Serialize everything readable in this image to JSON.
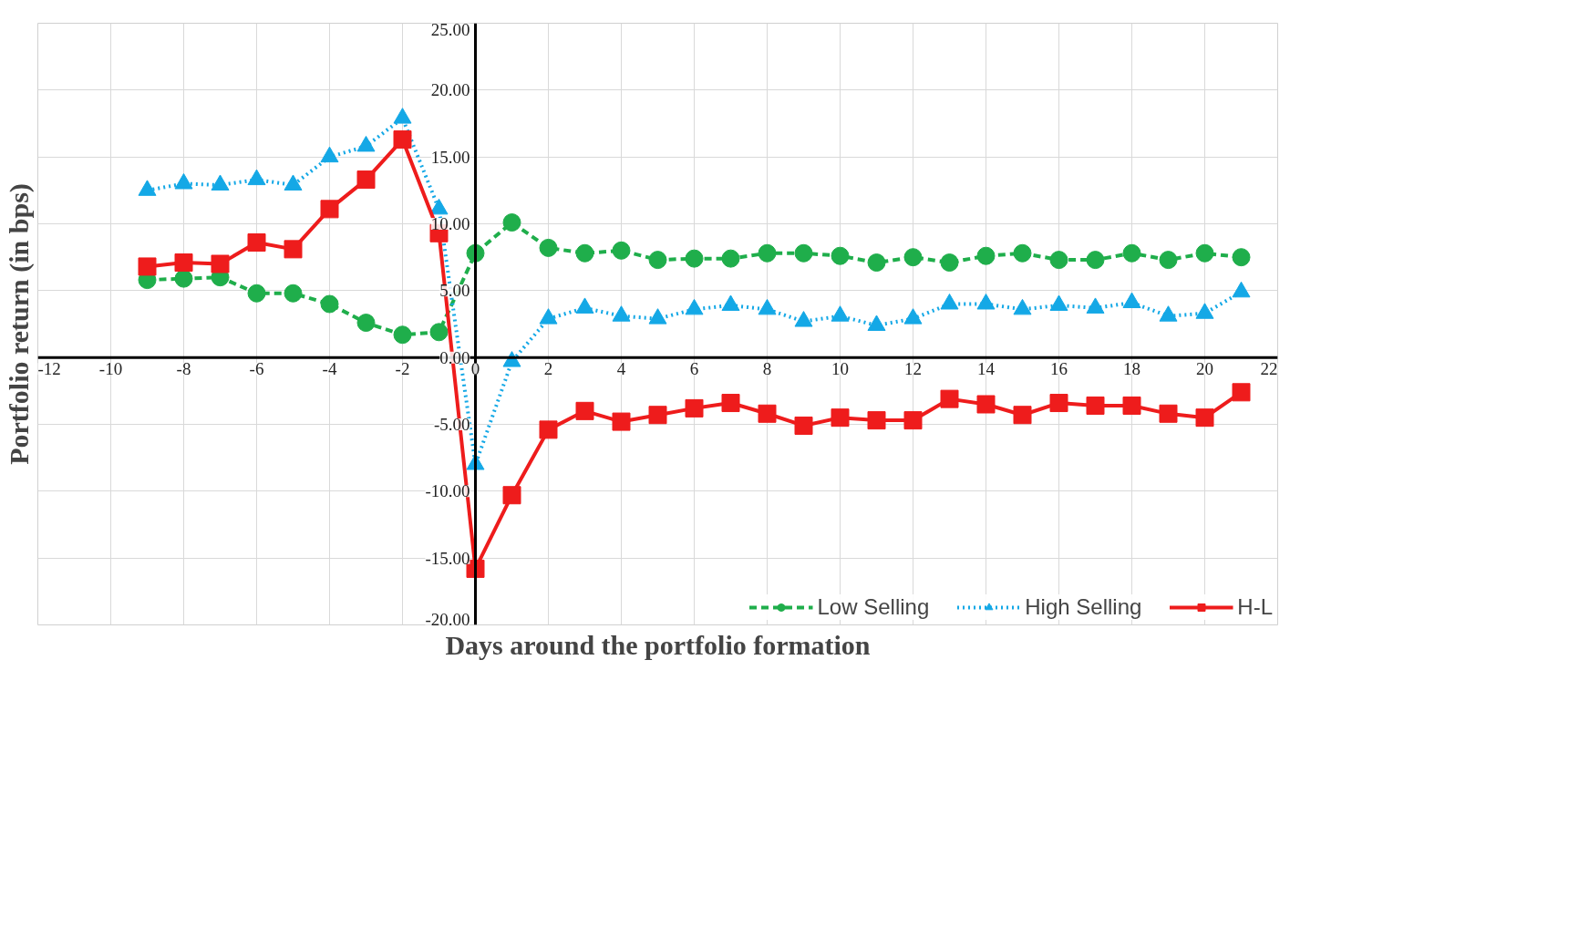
{
  "chart_data": {
    "type": "line",
    "xlabel": "Days around the portfolio formation",
    "ylabel": "Portfolio return (in bps)",
    "x": [
      -9,
      -8,
      -7,
      -6,
      -5,
      -4,
      -3,
      -2,
      -1,
      0,
      1,
      2,
      3,
      4,
      5,
      6,
      7,
      8,
      9,
      10,
      11,
      12,
      13,
      14,
      15,
      16,
      17,
      18,
      19,
      20,
      21
    ],
    "series": [
      {
        "name": "Low Selling",
        "color": "#1fae4b",
        "marker": "circle",
        "line_style": "dashed",
        "values": [
          5.8,
          5.9,
          6.0,
          4.8,
          4.8,
          4.0,
          2.6,
          1.7,
          1.9,
          7.8,
          10.1,
          8.2,
          7.8,
          8.0,
          7.3,
          7.4,
          7.4,
          7.8,
          7.8,
          7.6,
          7.1,
          7.5,
          7.1,
          7.6,
          7.8,
          7.3,
          7.3,
          7.8,
          7.3,
          7.8,
          7.5
        ]
      },
      {
        "name": "High Selling",
        "color": "#14a8e6",
        "marker": "triangle",
        "line_style": "dotted",
        "values": [
          12.5,
          13.0,
          12.9,
          13.3,
          12.9,
          15.0,
          15.8,
          17.9,
          11.1,
          -8.0,
          -0.3,
          2.9,
          3.7,
          3.1,
          2.9,
          3.6,
          3.9,
          3.6,
          2.7,
          3.1,
          2.4,
          2.9,
          4.0,
          4.0,
          3.6,
          3.9,
          3.7,
          4.1,
          3.1,
          3.3,
          4.9
        ]
      },
      {
        "name": "H-L",
        "color": "#ee1c1c",
        "marker": "square",
        "line_style": "solid",
        "values": [
          6.8,
          7.1,
          7.0,
          8.6,
          8.1,
          11.1,
          13.3,
          16.3,
          9.3,
          -15.8,
          -10.3,
          -5.4,
          -4.0,
          -4.8,
          -4.3,
          -3.8,
          -3.4,
          -4.2,
          -5.1,
          -4.5,
          -4.7,
          -4.7,
          -3.1,
          -3.5,
          -4.3,
          -3.4,
          -3.6,
          -3.6,
          -4.2,
          -4.5,
          -2.6
        ]
      }
    ],
    "xlim": [
      -12,
      22
    ],
    "xticks": [
      -12,
      -10,
      -8,
      -6,
      -4,
      -2,
      0,
      2,
      4,
      6,
      8,
      10,
      12,
      14,
      16,
      18,
      20,
      22
    ],
    "ylim": [
      -20,
      25
    ],
    "yticks": [
      {
        "value": -20,
        "label": "-20.00"
      },
      {
        "value": -15,
        "label": "-15.00"
      },
      {
        "value": -10,
        "label": "-10.00"
      },
      {
        "value": -5,
        "label": "-5.00"
      },
      {
        "value": 0,
        "label": "0.00"
      },
      {
        "value": 5,
        "label": "5.00"
      },
      {
        "value": 10,
        "label": "10.00"
      },
      {
        "value": 15,
        "label": "15.00"
      },
      {
        "value": 20,
        "label": "20.00"
      },
      {
        "value": 25,
        "label": "25.00"
      }
    ],
    "grid": true,
    "legend": "bottom right"
  }
}
